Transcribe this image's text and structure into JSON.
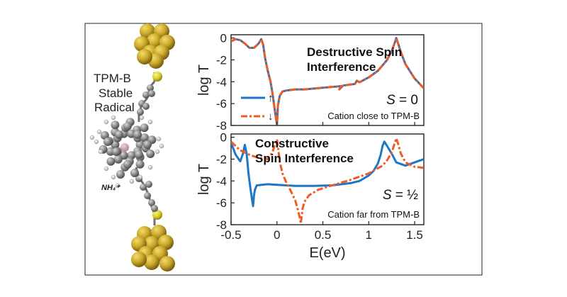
{
  "figure": {
    "left_label": [
      "TPM-B",
      "Stable",
      "Radical"
    ],
    "ion_label": "NH₄⁺",
    "xlabel": "E(eV)",
    "colors": {
      "spin_up": "#1f77c4",
      "spin_down": "#f15a24",
      "gold": "#c9a82a",
      "sulfur": "#d8cc2c",
      "carbon": "#8c8c8c"
    }
  },
  "chart_data": [
    {
      "type": "line",
      "panel": "top",
      "title": [
        "Destructive Spin",
        "Interference"
      ],
      "ylabel": "log T",
      "xlim": [
        -0.5,
        1.6
      ],
      "ylim": [
        -8,
        0.3
      ],
      "xticks": [
        "-0.5",
        "0",
        "0.5",
        "1",
        "1.5"
      ],
      "yticks": [
        "0",
        "-2",
        "-4",
        "-6",
        "-8"
      ],
      "state_label": "S = 0",
      "note": "Cation close to TPM-B",
      "legend": {
        "placement": "left-center",
        "entries": [
          "↑",
          "↓"
        ]
      },
      "series": [
        {
          "style": "solid",
          "color": "#1f77c4",
          "x": [
            -0.5,
            -0.45,
            -0.4,
            -0.35,
            -0.3,
            -0.25,
            -0.2,
            -0.17,
            -0.15,
            -0.13,
            -0.1,
            -0.07,
            -0.05,
            -0.03,
            -0.01,
            0.0,
            0.01,
            0.03,
            0.06,
            0.1,
            0.2,
            0.3,
            0.5,
            0.7,
            0.68,
            0.72,
            0.85,
            0.87,
            0.9,
            1.0,
            1.1,
            1.2,
            1.25,
            1.28,
            1.3,
            1.32,
            1.35,
            1.4,
            1.5,
            1.6
          ],
          "y": [
            -0.3,
            -0.1,
            -0.2,
            -0.5,
            -0.9,
            -0.9,
            -0.5,
            -0.1,
            -0.6,
            -1.8,
            -3.0,
            -4.0,
            -5.0,
            -6.2,
            -7.4,
            -7.9,
            -6.2,
            -5.3,
            -4.9,
            -4.8,
            -4.7,
            -4.7,
            -4.55,
            -4.4,
            -4.7,
            -4.35,
            -4.2,
            -3.9,
            -4.05,
            -3.6,
            -3.0,
            -2.0,
            -1.2,
            -0.5,
            0.0,
            -0.5,
            -1.3,
            -2.4,
            -3.7,
            -4.6
          ]
        },
        {
          "style": "dash-dot",
          "color": "#f15a24",
          "x": [
            -0.5,
            -0.45,
            -0.4,
            -0.35,
            -0.3,
            -0.25,
            -0.2,
            -0.17,
            -0.15,
            -0.13,
            -0.1,
            -0.07,
            -0.05,
            -0.03,
            -0.01,
            0.0,
            0.01,
            0.03,
            0.06,
            0.1,
            0.2,
            0.3,
            0.5,
            0.7,
            0.68,
            0.72,
            0.85,
            0.87,
            0.9,
            1.0,
            1.1,
            1.2,
            1.25,
            1.28,
            1.3,
            1.32,
            1.35,
            1.4,
            1.5,
            1.6
          ],
          "y": [
            -0.3,
            -0.1,
            -0.2,
            -0.5,
            -0.9,
            -0.9,
            -0.5,
            -0.1,
            -0.6,
            -1.8,
            -3.0,
            -4.0,
            -5.0,
            -6.2,
            -7.4,
            -7.9,
            -6.2,
            -5.3,
            -4.9,
            -4.8,
            -4.7,
            -4.7,
            -4.55,
            -4.4,
            -4.7,
            -4.35,
            -4.2,
            -3.9,
            -4.05,
            -3.6,
            -3.0,
            -2.0,
            -1.2,
            -0.5,
            0.0,
            -0.5,
            -1.3,
            -2.4,
            -3.7,
            -4.6
          ]
        }
      ]
    },
    {
      "type": "line",
      "panel": "bottom",
      "title": [
        "Constructive",
        "Spin Interference"
      ],
      "ylabel": "log T",
      "xlim": [
        -0.5,
        1.6
      ],
      "ylim": [
        -8,
        0.3
      ],
      "xticks": [
        "-0.5",
        "0",
        "0.5",
        "1",
        "1.5"
      ],
      "yticks": [
        "0",
        "-2",
        "-4",
        "-6",
        "-8"
      ],
      "state_label": "S = ½",
      "note": "Cation far from TPM-B",
      "series": [
        {
          "style": "solid",
          "color": "#1f77c4",
          "x": [
            -0.5,
            -0.45,
            -0.4,
            -0.37,
            -0.35,
            -0.33,
            -0.31,
            -0.29,
            -0.27,
            -0.26,
            -0.25,
            -0.24,
            -0.22,
            -0.1,
            0.0,
            0.2,
            0.4,
            0.6,
            0.8,
            0.9,
            1.0,
            1.05,
            1.1,
            1.13,
            1.15,
            1.17,
            1.2,
            1.25,
            1.3,
            1.4,
            1.5,
            1.6
          ],
          "y": [
            -0.5,
            -1.6,
            -2.2,
            -1.5,
            -0.7,
            -1.5,
            -3.3,
            -4.6,
            -5.8,
            -6.3,
            -5.3,
            -4.8,
            -4.4,
            -4.3,
            -4.35,
            -4.45,
            -4.45,
            -4.4,
            -4.2,
            -4.0,
            -3.5,
            -3.1,
            -2.4,
            -1.6,
            -0.8,
            -0.4,
            -0.8,
            -1.5,
            -2.3,
            -2.6,
            -2.3,
            -2.0
          ]
        },
        {
          "style": "dash-dot",
          "color": "#f15a24",
          "x": [
            -0.5,
            -0.4,
            -0.3,
            -0.2,
            -0.1,
            -0.05,
            -0.02,
            0.0,
            0.01,
            0.03,
            0.06,
            0.1,
            0.15,
            0.2,
            0.23,
            0.25,
            0.26,
            0.27,
            0.28,
            0.3,
            0.35,
            0.45,
            0.6,
            0.8,
            1.0,
            1.15,
            1.2,
            1.25,
            1.28,
            1.3,
            1.32,
            1.35,
            1.4,
            1.5,
            1.6
          ],
          "y": [
            -0.4,
            -1.2,
            -1.6,
            -1.9,
            -2.0,
            -1.4,
            -0.6,
            -0.2,
            -0.8,
            -2.2,
            -3.3,
            -4.1,
            -4.9,
            -5.8,
            -6.7,
            -7.4,
            -7.9,
            -7.2,
            -6.5,
            -5.9,
            -5.3,
            -4.8,
            -4.4,
            -3.9,
            -3.3,
            -2.6,
            -2.1,
            -1.4,
            -0.6,
            -0.1,
            -0.6,
            -1.5,
            -2.3,
            -2.7,
            -2.8
          ]
        }
      ]
    }
  ]
}
